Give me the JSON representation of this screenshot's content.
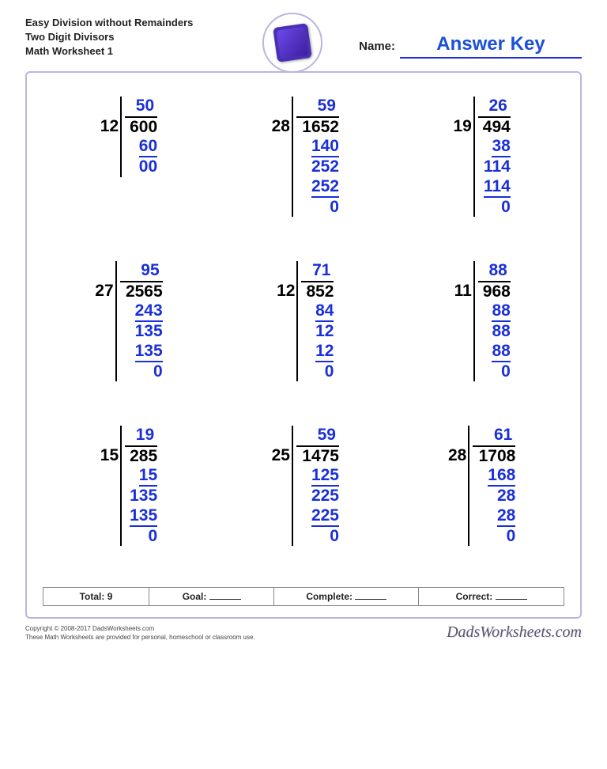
{
  "header": {
    "line1": "Easy Division without Remainders",
    "line2": "Two Digit Divisors",
    "line3": "Math Worksheet 1",
    "name_label": "Name:",
    "answer_key": "Answer Key"
  },
  "colors": {
    "accent": "#1a2fd8",
    "border": "#b9b6e0",
    "text": "#000000",
    "badge": "#4a2fb5"
  },
  "problems": [
    {
      "divisor": "12",
      "dividend": "600",
      "quotient": "50",
      "steps": [
        "60",
        "00"
      ],
      "underline": [
        true,
        false
      ]
    },
    {
      "divisor": "28",
      "dividend": "1652",
      "quotient": "59",
      "steps": [
        "140",
        "252",
        "252",
        "0"
      ],
      "underline": [
        true,
        false,
        true,
        false
      ]
    },
    {
      "divisor": "19",
      "dividend": "494",
      "quotient": "26",
      "steps": [
        "38",
        "114",
        "114",
        "0"
      ],
      "underline": [
        true,
        false,
        true,
        false
      ]
    },
    {
      "divisor": "27",
      "dividend": "2565",
      "quotient": "95",
      "steps": [
        "243",
        "135",
        "135",
        "0"
      ],
      "underline": [
        true,
        false,
        true,
        false
      ]
    },
    {
      "divisor": "12",
      "dividend": "852",
      "quotient": "71",
      "steps": [
        "84",
        "12",
        "12",
        "0"
      ],
      "underline": [
        true,
        false,
        true,
        false
      ]
    },
    {
      "divisor": "11",
      "dividend": "968",
      "quotient": "88",
      "steps": [
        "88",
        "88",
        "88",
        "0"
      ],
      "underline": [
        true,
        false,
        true,
        false
      ]
    },
    {
      "divisor": "15",
      "dividend": "285",
      "quotient": "19",
      "steps": [
        "15",
        "135",
        "135",
        "0"
      ],
      "underline": [
        true,
        false,
        true,
        false
      ]
    },
    {
      "divisor": "25",
      "dividend": "1475",
      "quotient": "59",
      "steps": [
        "125",
        "225",
        "225",
        "0"
      ],
      "underline": [
        true,
        false,
        true,
        false
      ]
    },
    {
      "divisor": "28",
      "dividend": "1708",
      "quotient": "61",
      "steps": [
        "168",
        "28",
        "28",
        "0"
      ],
      "underline": [
        true,
        false,
        true,
        false
      ]
    }
  ],
  "footbar": {
    "total_label": "Total:",
    "total_value": "9",
    "goal_label": "Goal:",
    "complete_label": "Complete:",
    "correct_label": "Correct:"
  },
  "footer": {
    "copyright": "Copyright © 2008-2017 DadsWorksheets.com",
    "tagline": "These Math Worksheets are provided for personal, homeschool or classroom use.",
    "brand": "DadsWorksheets.com"
  }
}
